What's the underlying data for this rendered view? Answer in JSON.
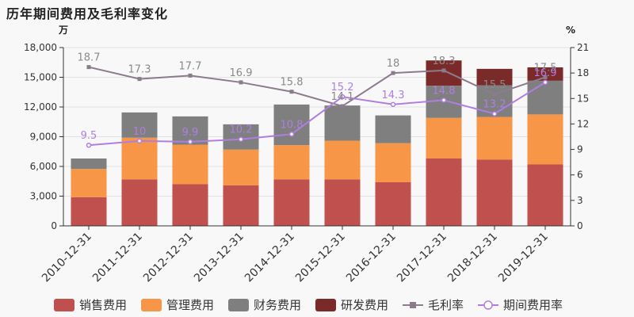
{
  "title": "历年期间费用及毛利率变化",
  "chart_data": {
    "type": "bar",
    "stacked": true,
    "categories": [
      "2010-12-31",
      "2011-12-31",
      "2012-12-31",
      "2013-12-31",
      "2014-12-31",
      "2015-12-31",
      "2016-12-31",
      "2017-12-31",
      "2018-12-31",
      "2019-12-31"
    ],
    "left_unit": "万",
    "right_unit": "%",
    "ylim_left": [
      0,
      18000
    ],
    "ylim_right": [
      0,
      21
    ],
    "yticks_left": [
      "0",
      "3,000",
      "6,000",
      "9,000",
      "12,000",
      "15,000",
      "18,000"
    ],
    "yticks_right": [
      "0",
      "3",
      "6",
      "9",
      "12",
      "15",
      "18",
      "21"
    ],
    "series": [
      {
        "name": "销售费用",
        "type": "bar",
        "color": "#c0504d",
        "values": [
          2900,
          4700,
          4200,
          4100,
          4700,
          4700,
          4400,
          6800,
          6700,
          6200
        ]
      },
      {
        "name": "管理费用",
        "type": "bar",
        "color": "#f79646",
        "values": [
          2850,
          4200,
          4000,
          3600,
          3450,
          3900,
          3950,
          4100,
          4300,
          5050
        ]
      },
      {
        "name": "财务费用",
        "type": "bar",
        "color": "#7f7f7f",
        "values": [
          1050,
          2550,
          2850,
          2550,
          4100,
          3550,
          2800,
          3250,
          3200,
          3400
        ]
      },
      {
        "name": "研发费用",
        "type": "bar",
        "color": "#7b2a2a",
        "values": [
          0,
          0,
          0,
          0,
          0,
          0,
          0,
          2550,
          1650,
          1350
        ]
      },
      {
        "name": "毛利率",
        "type": "line",
        "axis": "right",
        "color": "#8c7b8c",
        "marker": "square",
        "values": [
          18.7,
          17.3,
          17.7,
          16.9,
          15.8,
          14.1,
          18,
          18.3,
          15.5,
          17.5
        ]
      },
      {
        "name": "期间费用率",
        "type": "line",
        "axis": "right",
        "color": "#b07ee0",
        "marker": "circle",
        "values": [
          9.5,
          10,
          9.9,
          10.2,
          10.8,
          15.2,
          14.3,
          14.8,
          13.2,
          16.9
        ]
      }
    ],
    "grid": true,
    "legend": "bottom"
  }
}
